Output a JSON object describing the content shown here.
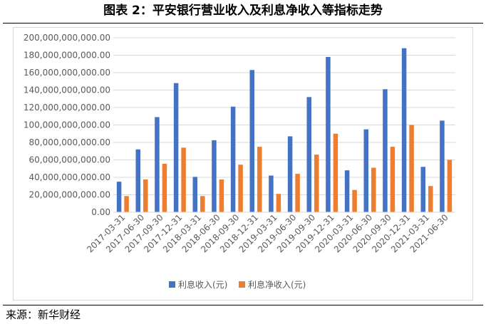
{
  "header": {
    "title": "图表 2：平安银行营业收入及利息净收入等指标走势"
  },
  "footer": {
    "source": "来源：新华财经"
  },
  "chart_data": {
    "type": "bar",
    "title": "",
    "xlabel": "",
    "ylabel": "",
    "ylim": [
      0,
      200000000000
    ],
    "y_ticks": [
      "0.00",
      "20,000,000,000.00",
      "40,000,000,000.00",
      "60,000,000,000.00",
      "80,000,000,000.00",
      "100,000,000,000.00",
      "120,000,000,000.00",
      "140,000,000,000.00",
      "160,000,000,000.00",
      "180,000,000,000.00",
      "200,000,000,000.00"
    ],
    "y_tick_values": [
      0,
      20000000000,
      40000000000,
      60000000000,
      80000000000,
      100000000000,
      120000000000,
      140000000000,
      160000000000,
      180000000000,
      200000000000
    ],
    "grid": true,
    "legend_position": "bottom",
    "categories": [
      "2017-03-31",
      "2017-06-30",
      "2017-09-30",
      "2017-12-31",
      "2018-03-31",
      "2018-06-30",
      "2018-09-30",
      "2018-12-31",
      "2019-03-31",
      "2019-06-30",
      "2019-09-30",
      "2019-12-31",
      "2020-03-31",
      "2020-06-30",
      "2020-09-30",
      "2020-12-31",
      "2021-03-31",
      "2021-06-30"
    ],
    "series": [
      {
        "name": "利息收入(元)",
        "color": "#4472c4",
        "values": [
          35000000000,
          72000000000,
          109000000000,
          148000000000,
          40500000000,
          82500000000,
          121000000000,
          163000000000,
          42000000000,
          87000000000,
          132000000000,
          178000000000,
          48000000000,
          95000000000,
          141000000000,
          188000000000,
          52000000000,
          105000000000
        ]
      },
      {
        "name": "利息净收入(元)",
        "color": "#ed7d31",
        "values": [
          18500000000,
          37500000000,
          55500000000,
          74000000000,
          18500000000,
          37500000000,
          54500000000,
          75000000000,
          21000000000,
          44000000000,
          66000000000,
          90000000000,
          25500000000,
          51000000000,
          75000000000,
          100000000000,
          30000000000,
          60000000000
        ]
      }
    ]
  }
}
